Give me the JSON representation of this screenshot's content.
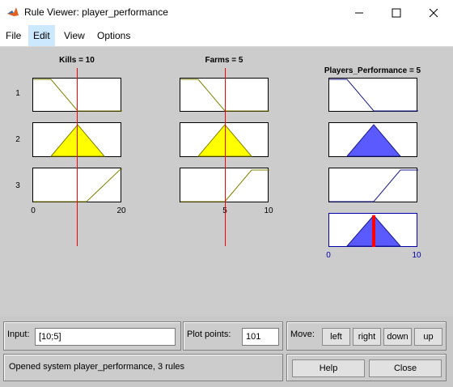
{
  "window": {
    "title": "Rule Viewer: player_performance"
  },
  "menu": [
    "File",
    "Edit",
    "View",
    "Options"
  ],
  "plots": {
    "kills": {
      "title": "Kills = 10",
      "ticks": [
        "0",
        "20"
      ]
    },
    "farms": {
      "title": "Farms = 5",
      "ticks": [
        "5",
        "10"
      ]
    },
    "output": {
      "title": "Players_Performance = 5",
      "ticks": [
        "0",
        "10"
      ]
    }
  },
  "rows": [
    "1",
    "2",
    "3"
  ],
  "colors": {
    "input_fill": "#ffff00",
    "output_fill": "#5a5aff",
    "marker": "#ff0000",
    "output_line": "#1a1a8c",
    "input_line": "#808000"
  },
  "input": {
    "label": "Input:",
    "value": "[10;5]"
  },
  "plot_points": {
    "label": "Plot points:",
    "value": "101"
  },
  "move": {
    "label": "Move:",
    "buttons": [
      "left",
      "right",
      "down",
      "up"
    ]
  },
  "status": "Opened system player_performance, 3 rules",
  "buttons": {
    "help": "Help",
    "close": "Close"
  }
}
